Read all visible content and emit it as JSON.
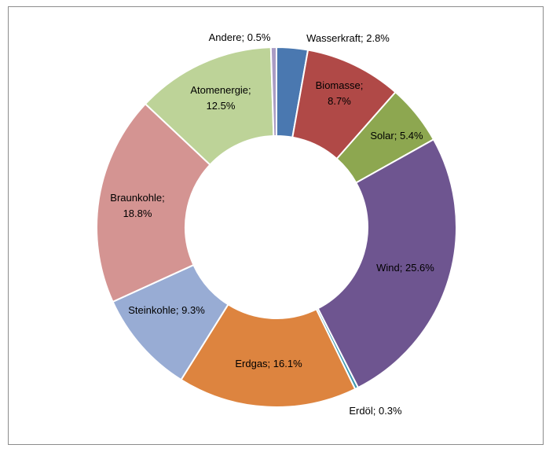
{
  "chart_data": {
    "type": "pie",
    "variant": "doughnut",
    "title": "",
    "legend": "none",
    "slices": [
      {
        "category": "Wasserkraft",
        "value": 2.8,
        "label_line1": "Wasserkraft; 2.8%",
        "label_line2": "",
        "color": "#4a78b0"
      },
      {
        "category": "Biomasse",
        "value": 8.7,
        "label_line1": "Biomasse;",
        "label_line2": "8.7%",
        "color": "#b04947"
      },
      {
        "category": "Solar",
        "value": 5.4,
        "label_line1": "Solar; 5.4%",
        "label_line2": "",
        "color": "#8da750"
      },
      {
        "category": "Wind",
        "value": 25.6,
        "label_line1": "Wind; 25.6%",
        "label_line2": "",
        "color": "#6e5590"
      },
      {
        "category": "Erdöl",
        "value": 0.3,
        "label_line1": "Erdöl; 0.3%",
        "label_line2": "",
        "color": "#3d98b1"
      },
      {
        "category": "Erdgas",
        "value": 16.1,
        "label_line1": "Erdgas; 16.1%",
        "label_line2": "",
        "color": "#dd843f"
      },
      {
        "category": "Steinkohle",
        "value": 9.3,
        "label_line1": "Steinkohle; 9.3%",
        "label_line2": "",
        "color": "#98acd4"
      },
      {
        "category": "Braunkohle",
        "value": 18.8,
        "label_line1": "Braunkohle;",
        "label_line2": "18.8%",
        "color": "#d49492"
      },
      {
        "category": "Atomenergie",
        "value": 12.5,
        "label_line1": "Atomenergie;",
        "label_line2": "12.5%",
        "color": "#bdd398"
      },
      {
        "category": "Andere",
        "value": 0.5,
        "label_line1": "Andere; 0.5%",
        "label_line2": "",
        "color": "#aa9cc4"
      }
    ]
  }
}
